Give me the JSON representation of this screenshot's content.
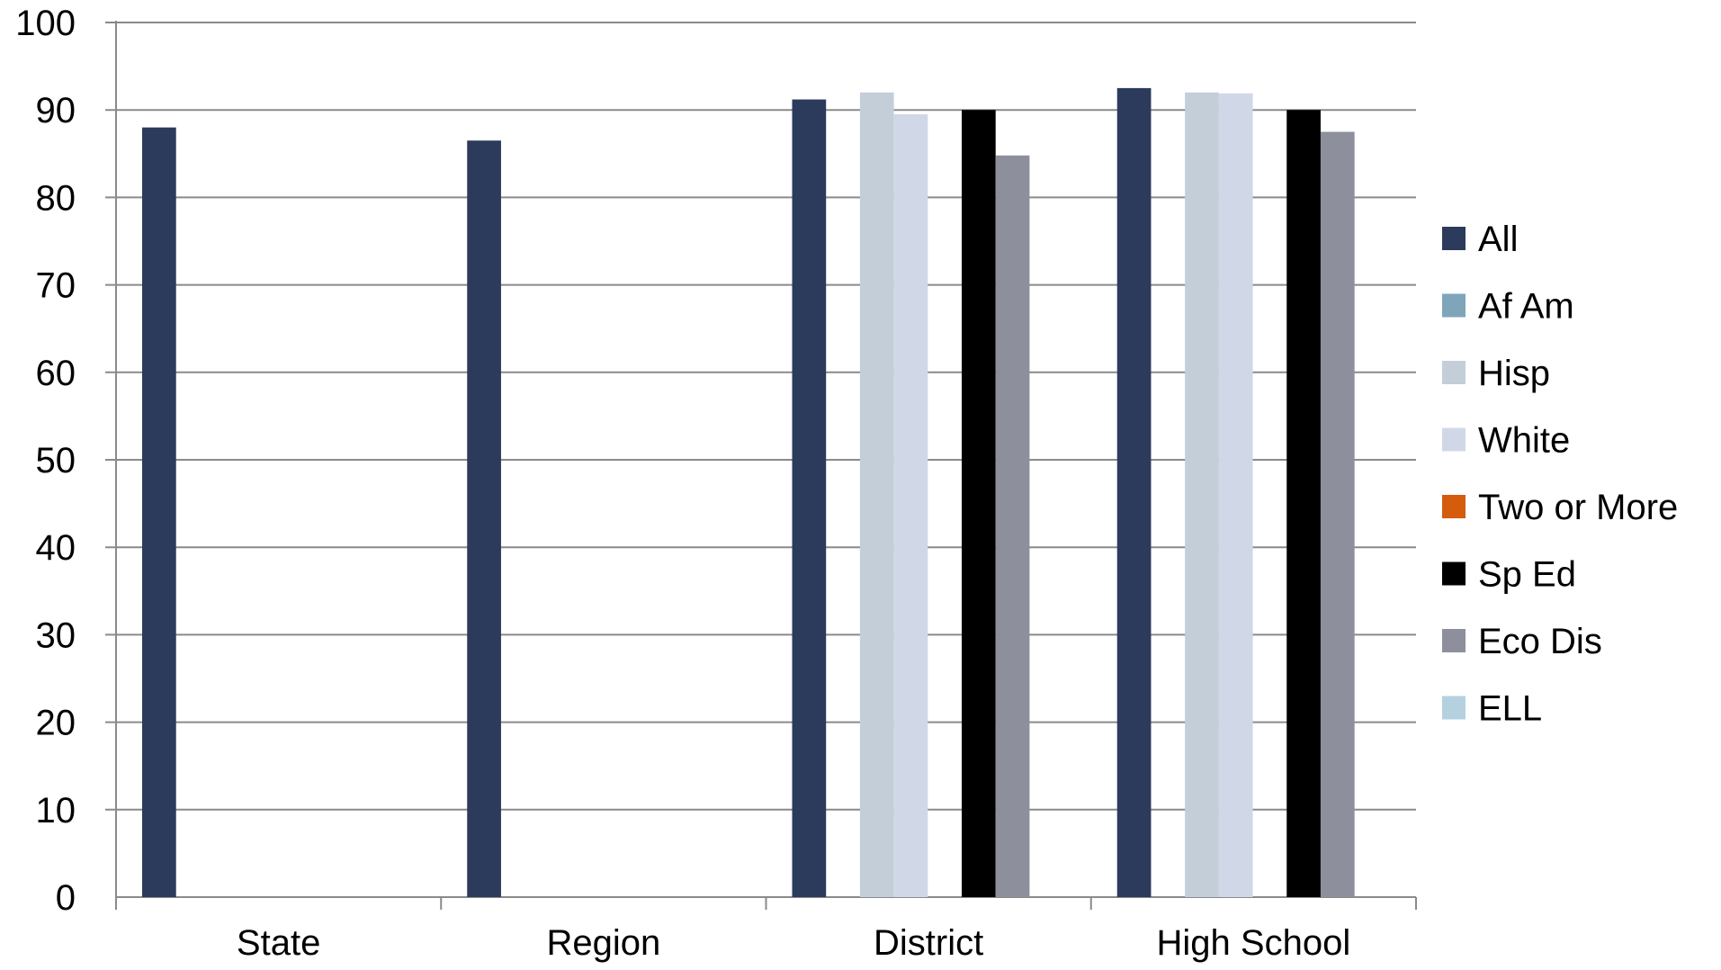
{
  "chart_data": {
    "type": "bar",
    "title": "",
    "xlabel": "",
    "ylabel": "",
    "ylim": [
      0,
      100
    ],
    "yticks": [
      "0",
      "10",
      "20",
      "30",
      "40",
      "50",
      "60",
      "70",
      "80",
      "90",
      "100"
    ],
    "grid": true,
    "legend_position": "right",
    "categories": [
      "State",
      "Region",
      "District",
      "High School"
    ],
    "series": [
      {
        "name": "All",
        "color": "#2c3a5c",
        "values": [
          88,
          86.5,
          91.2,
          92.5
        ]
      },
      {
        "name": "Af Am",
        "color": "#7fa5bb",
        "values": [
          null,
          null,
          null,
          null
        ]
      },
      {
        "name": "Hisp",
        "color": "#c3ced9",
        "values": [
          null,
          null,
          92,
          92
        ]
      },
      {
        "name": "White",
        "color": "#d0d8e8",
        "values": [
          null,
          null,
          89.5,
          91.9
        ]
      },
      {
        "name": "Two or More",
        "color": "#d55b0d",
        "values": [
          null,
          null,
          null,
          null
        ]
      },
      {
        "name": "Sp Ed",
        "color": "#000000",
        "values": [
          null,
          null,
          90,
          90
        ]
      },
      {
        "name": "Eco Dis",
        "color": "#8d909c",
        "values": [
          null,
          null,
          84.8,
          87.5
        ]
      },
      {
        "name": "ELL",
        "color": "#b5d1e0",
        "values": [
          null,
          null,
          null,
          null
        ]
      }
    ]
  }
}
